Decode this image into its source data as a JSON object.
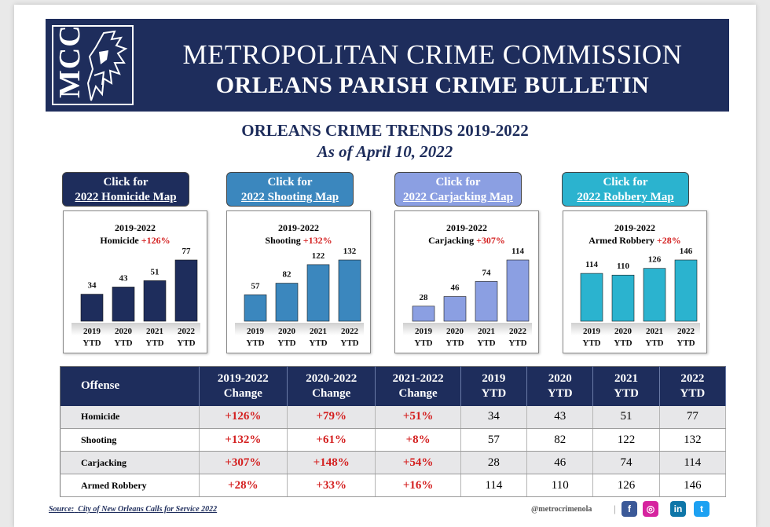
{
  "header": {
    "logo_text": "MCC",
    "title_line1": "METROPOLITAN CRIME COMMISSION",
    "title_line2": "ORLEANS PARISH CRIME BULLETIN"
  },
  "trends": {
    "title": "ORLEANS CRIME TRENDS 2019-2022",
    "date": "As of April 10, 2022"
  },
  "map_buttons": [
    {
      "line1": "Click for",
      "line2": "2022 Homicide Map",
      "color": "#1e2d5c"
    },
    {
      "line1": "Click for",
      "line2": "2022 Shooting Map",
      "color": "#3b87be"
    },
    {
      "line1": "Click for",
      "line2": "2022 Carjacking Map",
      "color": "#8b9fe2"
    },
    {
      "line1": "Click for",
      "line2": "2022 Robbery Map",
      "color": "#2bb3cf"
    }
  ],
  "chart_data": [
    {
      "type": "bar",
      "title_years": "2019-2022",
      "title_name": "Homicide",
      "title_pct": "+126%",
      "categories": [
        "2019 YTD",
        "2020 YTD",
        "2021 YTD",
        "2022 YTD"
      ],
      "values": [
        34,
        43,
        51,
        77
      ],
      "color": "#1e2d5c"
    },
    {
      "type": "bar",
      "title_years": "2019-2022",
      "title_name": "Shooting",
      "title_pct": "+132%",
      "categories": [
        "2019 YTD",
        "2020 YTD",
        "2021 YTD",
        "2022 YTD"
      ],
      "values": [
        57,
        82,
        122,
        132
      ],
      "color": "#3b87be"
    },
    {
      "type": "bar",
      "title_years": "2019-2022",
      "title_name": "Carjacking",
      "title_pct": "+307%",
      "categories": [
        "2019 YTD",
        "2020 YTD",
        "2021 YTD",
        "2022 YTD"
      ],
      "values": [
        28,
        46,
        74,
        114
      ],
      "color": "#8b9fe2"
    },
    {
      "type": "bar",
      "title_years": "2019-2022",
      "title_name": "Armed Robbery",
      "title_pct": "+28%",
      "categories": [
        "2019 YTD",
        "2020 YTD",
        "2021 YTD",
        "2022 YTD"
      ],
      "values": [
        114,
        110,
        126,
        146
      ],
      "color": "#2bb3cf"
    }
  ],
  "table": {
    "headers": [
      "Offense",
      "2019-2022 Change",
      "2020-2022 Change",
      "2021-2022 Change",
      "2019 YTD",
      "2020 YTD",
      "2021 YTD",
      "2022 YTD"
    ],
    "rows": [
      [
        "Homicide",
        "+126%",
        "+79%",
        "+51%",
        "34",
        "43",
        "51",
        "77"
      ],
      [
        "Shooting",
        "+132%",
        "+61%",
        "+8%",
        "57",
        "82",
        "122",
        "132"
      ],
      [
        "Carjacking",
        "+307%",
        "+148%",
        "+54%",
        "28",
        "46",
        "74",
        "114"
      ],
      [
        "Armed Robbery",
        "+28%",
        "+33%",
        "+16%",
        "114",
        "110",
        "126",
        "146"
      ]
    ]
  },
  "footer": {
    "source_label": "Source:",
    "source_text": "City of New Orleans Calls for Service 2022",
    "handle": "@metrocrimenola",
    "separator": "|",
    "social": [
      {
        "icon": "facebook-icon",
        "glyph": "f",
        "color": "#3b5998"
      },
      {
        "icon": "instagram-icon",
        "glyph": "◎",
        "color": "#d6249f"
      },
      {
        "icon": "linkedin-icon",
        "glyph": "in",
        "color": "#0e76a8"
      },
      {
        "icon": "twitter-icon",
        "glyph": "t",
        "color": "#1da1f2"
      }
    ]
  }
}
